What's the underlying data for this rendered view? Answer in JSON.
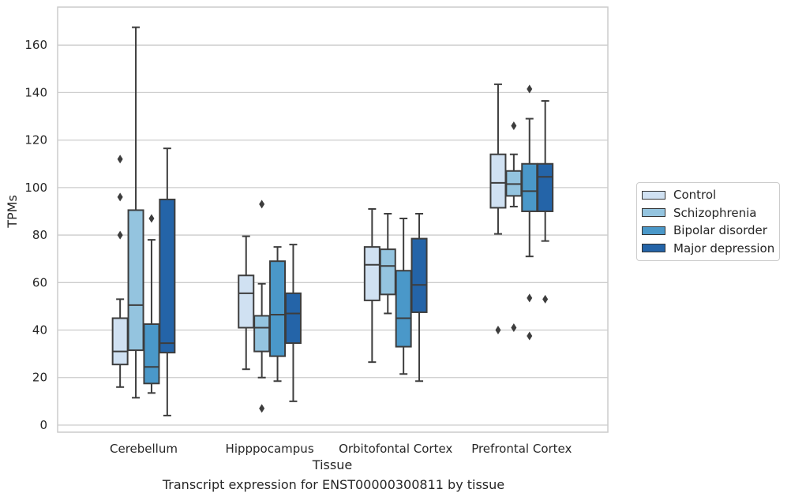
{
  "chart_data": {
    "type": "box",
    "title": "Transcript expression for ENST00000300811 by tissue",
    "xlabel": "Tissue",
    "ylabel": "TPMs",
    "ylim": [
      -3,
      176
    ],
    "yticks": [
      0,
      20,
      40,
      60,
      80,
      100,
      120,
      140,
      160
    ],
    "grid": "horizontal",
    "legend_position": "right",
    "categories": [
      "Cerebellum",
      "Hipppocampus",
      "Orbitofontal Cortex",
      "Prefrontal Cortex"
    ],
    "series": [
      {
        "name": "Control",
        "color": "#d0e1f2",
        "boxes": [
          {
            "whisker_low": 16,
            "q1": 25.5,
            "median": 31,
            "q3": 45,
            "whisker_high": 53,
            "outliers": [
              80,
              96,
              112
            ]
          },
          {
            "whisker_low": 23.5,
            "q1": 41,
            "median": 55.5,
            "q3": 63,
            "whisker_high": 79.5,
            "outliers": []
          },
          {
            "whisker_low": 26.5,
            "q1": 52.5,
            "median": 67.5,
            "q3": 75,
            "whisker_high": 91,
            "outliers": []
          },
          {
            "whisker_low": 80.5,
            "q1": 91.5,
            "median": 102,
            "q3": 114,
            "whisker_high": 143.5,
            "outliers": [
              40
            ]
          }
        ]
      },
      {
        "name": "Schizophrenia",
        "color": "#94c4df",
        "boxes": [
          {
            "whisker_low": 11.5,
            "q1": 31.5,
            "median": 50.5,
            "q3": 90.5,
            "whisker_high": 167.5,
            "outliers": []
          },
          {
            "whisker_low": 20,
            "q1": 31,
            "median": 41,
            "q3": 46,
            "whisker_high": 59.5,
            "outliers": [
              7,
              93
            ]
          },
          {
            "whisker_low": 47,
            "q1": 55,
            "median": 67,
            "q3": 74,
            "whisker_high": 89,
            "outliers": []
          },
          {
            "whisker_low": 92,
            "q1": 96.5,
            "median": 101.5,
            "q3": 107,
            "whisker_high": 114,
            "outliers": [
              41,
              126
            ]
          }
        ]
      },
      {
        "name": "Bipolar disorder",
        "color": "#4a98c9",
        "boxes": [
          {
            "whisker_low": 13.5,
            "q1": 17.5,
            "median": 24.5,
            "q3": 42.5,
            "whisker_high": 78,
            "outliers": [
              87
            ]
          },
          {
            "whisker_low": 18.5,
            "q1": 29,
            "median": 46.5,
            "q3": 69,
            "whisker_high": 75,
            "outliers": []
          },
          {
            "whisker_low": 21.5,
            "q1": 33,
            "median": 45,
            "q3": 65,
            "whisker_high": 87,
            "outliers": []
          },
          {
            "whisker_low": 71,
            "q1": 90,
            "median": 98.5,
            "q3": 110,
            "whisker_high": 129,
            "outliers": [
              37.5,
              53.5,
              141.5
            ]
          }
        ]
      },
      {
        "name": "Major depression",
        "color": "#2464a8",
        "boxes": [
          {
            "whisker_low": 4,
            "q1": 30.5,
            "median": 34.5,
            "q3": 95,
            "whisker_high": 116.5,
            "outliers": []
          },
          {
            "whisker_low": 10,
            "q1": 34.5,
            "median": 47,
            "q3": 55.5,
            "whisker_high": 76,
            "outliers": []
          },
          {
            "whisker_low": 18.5,
            "q1": 47.5,
            "median": 59,
            "q3": 78.5,
            "whisker_high": 89,
            "outliers": []
          },
          {
            "whisker_low": 77.5,
            "q1": 90,
            "median": 104.5,
            "q3": 110,
            "whisker_high": 136.5,
            "outliers": [
              53
            ]
          }
        ]
      }
    ]
  }
}
